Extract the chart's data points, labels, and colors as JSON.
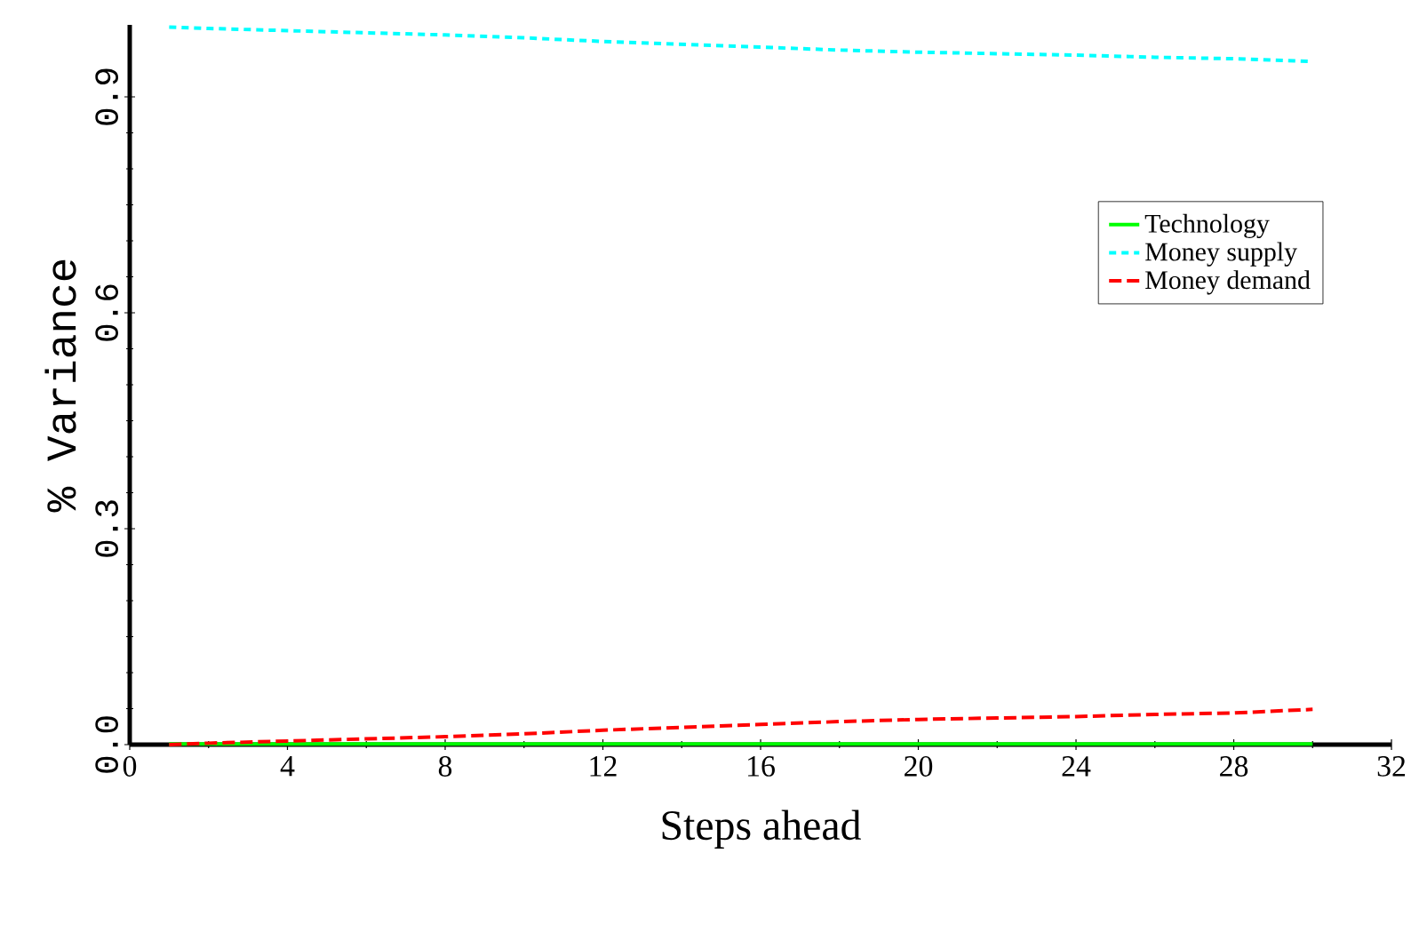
{
  "chart_data": {
    "type": "line",
    "xlabel": "Steps ahead",
    "ylabel": "% Variance",
    "x": [
      1,
      2,
      4,
      6,
      8,
      10,
      12,
      14,
      16,
      18,
      20,
      22,
      24,
      26,
      28,
      30
    ],
    "xlim": [
      0,
      32
    ],
    "xticks": [
      0,
      4,
      8,
      12,
      16,
      20,
      24,
      28,
      32
    ],
    "ylim": [
      0,
      1
    ],
    "yticks": [
      {
        "value": 0,
        "label": "0.0"
      },
      {
        "value": 0.3,
        "label": "0.3"
      },
      {
        "value": 0.6,
        "label": "0.6"
      },
      {
        "value": 0.9,
        "label": "0.9"
      }
    ],
    "legend": "right",
    "marker": "none",
    "grid": false,
    "series": [
      {
        "name": "Technology",
        "color": "#00ff00",
        "line_style": "solid",
        "values": [
          0.001,
          0.001,
          0.001,
          0.001,
          0.001,
          0.001,
          0.001,
          0.001,
          0.001,
          0.001,
          0.001,
          0.001,
          0.001,
          0.001,
          0.001,
          0.001
        ]
      },
      {
        "name": "Money supply",
        "color": "#00ffff",
        "line_style": "dotted",
        "values": [
          0.997,
          0.995,
          0.992,
          0.989,
          0.986,
          0.982,
          0.977,
          0.973,
          0.969,
          0.965,
          0.962,
          0.96,
          0.958,
          0.955,
          0.953,
          0.949
        ]
      },
      {
        "name": "Money demand",
        "color": "#ff0000",
        "line_style": "dashed",
        "values": [
          0,
          0.002,
          0.005,
          0.008,
          0.011,
          0.015,
          0.02,
          0.024,
          0.028,
          0.032,
          0.035,
          0.037,
          0.039,
          0.042,
          0.044,
          0.049
        ]
      }
    ]
  }
}
